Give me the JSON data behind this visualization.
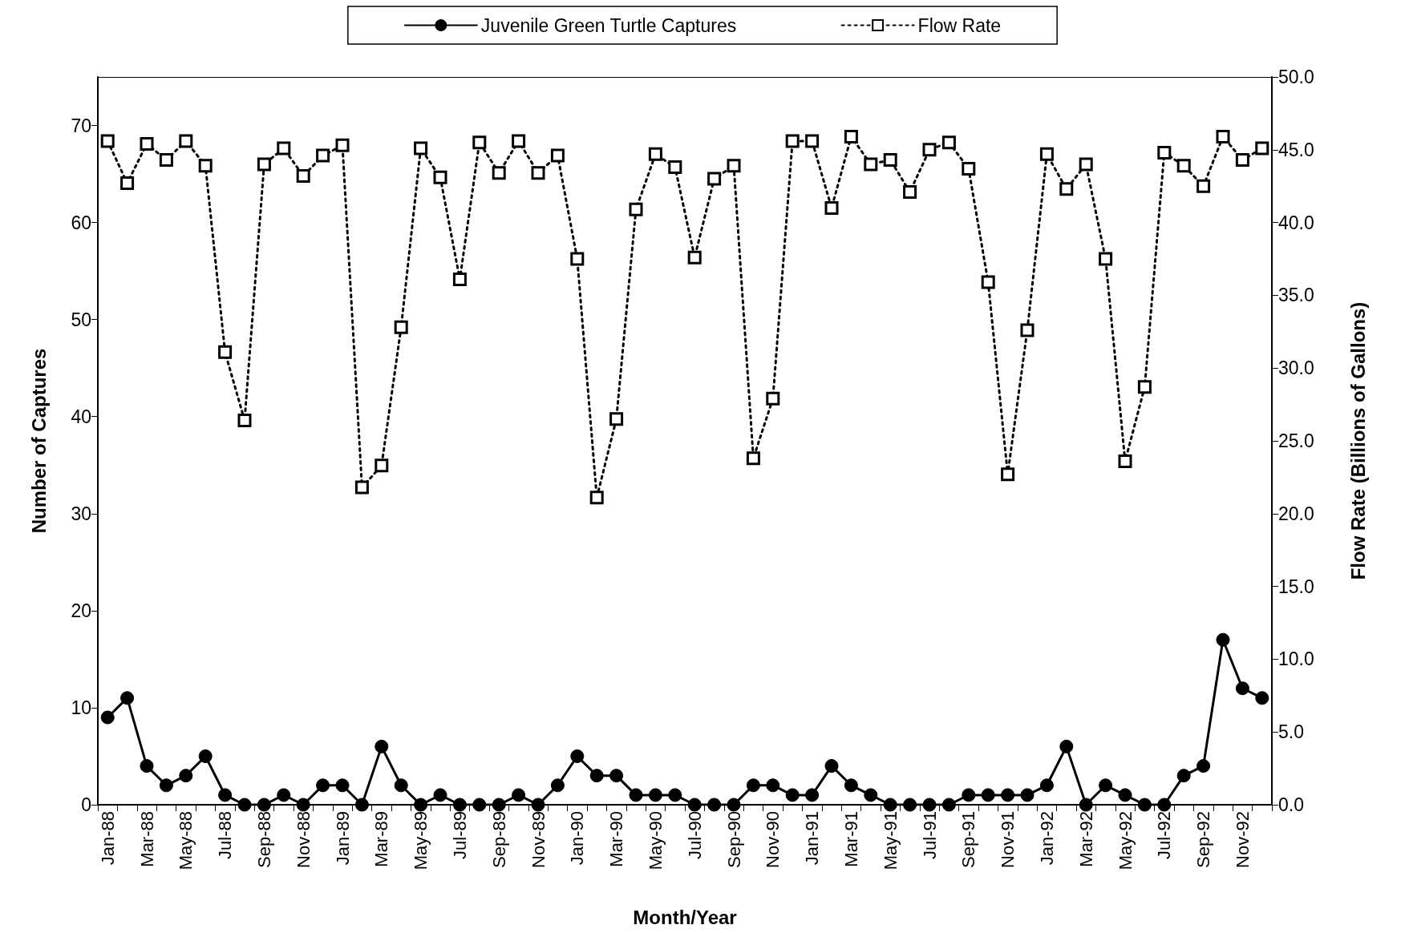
{
  "chart_data": {
    "type": "line",
    "xlabel": "Month/Year",
    "ylabel": "Number of Captures",
    "y2label": "Flow Rate (Billions of Gallons)",
    "categories": [
      "Jan-88",
      null,
      "Mar-88",
      null,
      "May-88",
      null,
      "Jul-88",
      null,
      "Sep-88",
      null,
      "Nov-88",
      null,
      "Jan-89",
      null,
      "Mar-89",
      null,
      "May-89",
      null,
      "Jul-89",
      null,
      "Sep-89",
      null,
      "Nov-89",
      null,
      "Jan-90",
      null,
      "Mar-90",
      null,
      "May-90",
      null,
      "Jul-90",
      null,
      "Sep-90",
      null,
      "Nov-90",
      null,
      "Jan-91",
      null,
      "Mar-91",
      null,
      "May-91",
      null,
      "Jul-91",
      null,
      "Sep-91",
      null,
      "Nov-91",
      null,
      "Jan-92",
      null,
      "Mar-92",
      null,
      "May-92",
      null,
      "Jul-92",
      null,
      "Sep-92",
      null,
      "Nov-92",
      null
    ],
    "series": [
      {
        "name": "Juvenile Green Turtle Captures",
        "color": "#000000",
        "marker": "circle",
        "line_style": "solid",
        "values": [
          9,
          11,
          4,
          2,
          3,
          5,
          1,
          0,
          0,
          1,
          0,
          2,
          2,
          0,
          6,
          2,
          0,
          1,
          0,
          0,
          0,
          1,
          0,
          2,
          5,
          3,
          3,
          1,
          1,
          1,
          0,
          0,
          0,
          2,
          2,
          1,
          1,
          4,
          2,
          1,
          0,
          0,
          0,
          0,
          1,
          1,
          1,
          1,
          2,
          6,
          0,
          2,
          1,
          0,
          0,
          3,
          4,
          17,
          12,
          11
        ]
      },
      {
        "name": "Flow Rate",
        "color": "#000000",
        "marker": "square",
        "line_style": "dotted",
        "axis": "y2",
        "values": [
          45.6,
          42.7,
          45.4,
          44.3,
          45.6,
          43.9,
          31.1,
          26.4,
          44.0,
          45.1,
          43.2,
          44.6,
          45.3,
          21.8,
          23.3,
          32.8,
          45.1,
          43.1,
          36.1,
          45.5,
          43.4,
          45.6,
          43.4,
          44.6,
          37.5,
          21.1,
          26.5,
          40.9,
          44.7,
          43.8,
          37.6,
          43.0,
          43.9,
          23.8,
          27.9,
          45.6,
          45.6,
          41.0,
          45.9,
          44.0,
          44.3,
          42.1,
          45.0,
          45.5,
          43.7,
          35.9,
          22.7,
          32.6,
          44.7,
          42.3,
          44.0,
          37.5,
          23.6,
          28.7,
          44.8,
          43.9,
          42.5,
          45.9,
          44.3,
          45.1
        ]
      }
    ],
    "ylim": [
      0,
      75
    ],
    "yticks": [
      0,
      10,
      20,
      30,
      40,
      50,
      60,
      70
    ],
    "y2lim": [
      0,
      50
    ],
    "y2ticks": [
      {
        "value": 0,
        "label": "0.0"
      },
      {
        "value": 5,
        "label": "5.0"
      },
      {
        "value": 10,
        "label": "10.0"
      },
      {
        "value": 15,
        "label": "15.0"
      },
      {
        "value": 20,
        "label": "20.0"
      },
      {
        "value": 25,
        "label": "25.0"
      },
      {
        "value": 30,
        "label": "30.0"
      },
      {
        "value": 35,
        "label": "35.0"
      },
      {
        "value": 40,
        "label": "40.0"
      },
      {
        "value": 45,
        "label": "45.0"
      },
      {
        "value": 50,
        "label": "50.0"
      }
    ],
    "grid": false,
    "legend": "top"
  }
}
